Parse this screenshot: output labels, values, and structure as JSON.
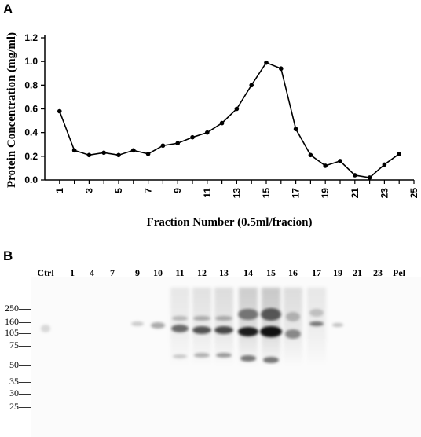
{
  "panels": {
    "a_label": "A",
    "b_label": "B"
  },
  "chart_data": {
    "type": "line",
    "title": "",
    "xlabel": "Fraction Number (0.5ml/fracion)",
    "ylabel": "Protein  Concentration (mg/ml)",
    "xlim": [
      0,
      25
    ],
    "ylim": [
      0,
      1.2
    ],
    "xticks": [
      1,
      3,
      5,
      7,
      9,
      11,
      13,
      15,
      17,
      19,
      21,
      23,
      25
    ],
    "yticks": [
      "0.0",
      "0.2",
      "0.4",
      "0.6",
      "0.8",
      "1.0",
      "1.2"
    ],
    "grid": false,
    "series": [
      {
        "x": [
          1,
          2,
          3,
          4,
          5,
          6,
          7,
          8,
          9,
          10,
          11,
          12,
          13,
          14,
          15,
          16,
          17,
          18,
          19,
          20,
          21,
          22,
          23,
          24
        ],
        "y": [
          0.58,
          0.25,
          0.21,
          0.23,
          0.21,
          0.25,
          0.22,
          0.29,
          0.31,
          0.36,
          0.4,
          0.48,
          0.6,
          0.8,
          0.99,
          0.94,
          0.43,
          0.21,
          0.12,
          0.16,
          0.04,
          0.02,
          0.13,
          0.22
        ],
        "color": "#000000"
      }
    ]
  },
  "blot": {
    "lanes": [
      "Ctrl",
      "1",
      "4",
      "7",
      "9",
      "10",
      "11",
      "12",
      "13",
      "14",
      "15",
      "16",
      "17",
      "19",
      "21",
      "23",
      "Pel"
    ],
    "markers": [
      "250",
      "160",
      "105",
      "75",
      "50",
      "35",
      "30",
      "25"
    ]
  }
}
